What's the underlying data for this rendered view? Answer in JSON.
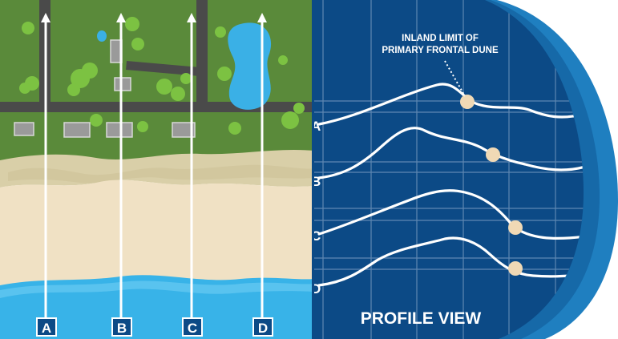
{
  "aerial": {
    "transect_labels": [
      "A",
      "B",
      "C",
      "D"
    ]
  },
  "profile": {
    "title": "PROFILE VIEW",
    "profile_labels": [
      "A",
      "B",
      "C",
      "D"
    ],
    "annotation_line1": "INLAND LIMIT OF",
    "annotation_line2": "PRIMARY FRONTAL DUNE"
  },
  "colors": {
    "grass": "#5a8a3a",
    "road": "#4a4a4a",
    "tree": "#7cc242",
    "roof": "#9a9a9a",
    "pond": "#3ab0e6",
    "dune": "#d9cfa8",
    "beach": "#f0e1c4",
    "water": "#38b3e8",
    "profile_bg": "#0c4a86",
    "profile_ring": "#1f7fc0",
    "marker": "#f0d9b5"
  }
}
